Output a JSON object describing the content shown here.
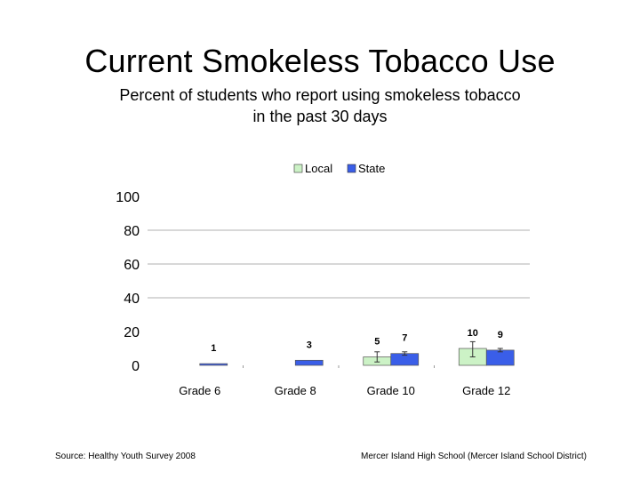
{
  "slide": {
    "title": "Current Smokeless Tobacco Use",
    "subtitle_line1": "Percent of students who report using smokeless tobacco",
    "subtitle_line2": "in the past 30 days",
    "source": "Source: Healthy Youth Survey 2008",
    "school": "Mercer Island High School (Mercer Island School District)"
  },
  "chart_data": {
    "type": "bar",
    "categories": [
      "Grade 6",
      "Grade 8",
      "Grade 10",
      "Grade 12"
    ],
    "series": [
      {
        "name": "Local",
        "values": [
          null,
          null,
          5,
          10
        ],
        "labels": [
          "",
          "",
          "5",
          "10"
        ],
        "color": "#ccf2c6",
        "error": [
          null,
          null,
          [
            2,
            8
          ],
          [
            5,
            14
          ]
        ]
      },
      {
        "name": "State",
        "values": [
          1,
          3,
          7,
          9
        ],
        "labels": [
          "1",
          "3",
          "7",
          "9"
        ],
        "color": "#3a5ee8",
        "error": [
          null,
          null,
          [
            6,
            8
          ],
          [
            8,
            10
          ]
        ]
      }
    ],
    "ylim": [
      0,
      100
    ],
    "yticks": [
      "0",
      "20",
      "40",
      "60",
      "80",
      "100"
    ],
    "ytick_values": [
      0,
      20,
      40,
      60,
      80,
      100
    ],
    "gridlines": [
      40,
      60,
      80
    ],
    "legend_position": "top"
  }
}
